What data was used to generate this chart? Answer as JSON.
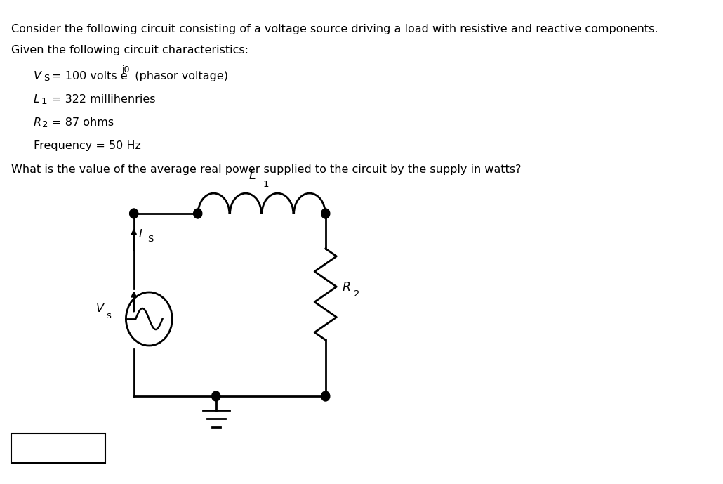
{
  "title_line1": "Consider the following circuit consisting of a voltage source driving a load with resistive and reactive components.",
  "title_line2": "Given the following circuit characteristics:",
  "param1": "V",
  "param1_sub": "S",
  "param1_rest": " = 100 volts e",
  "param1_exp": "j0",
  "param1_end": " (phasor voltage)",
  "param2": "L",
  "param2_sub": "1",
  "param2_rest": " = 322 millihenries",
  "param3": "R",
  "param3_sub": "2",
  "param3_rest": " = 87 ohms",
  "param4": "Frequency = 50 Hz",
  "question": "What is the value of the average real power supplied to the circuit by the supply in watts?",
  "bg_color": "#ffffff",
  "text_color": "#000000",
  "circuit_color": "#000000",
  "lw": 2.0
}
